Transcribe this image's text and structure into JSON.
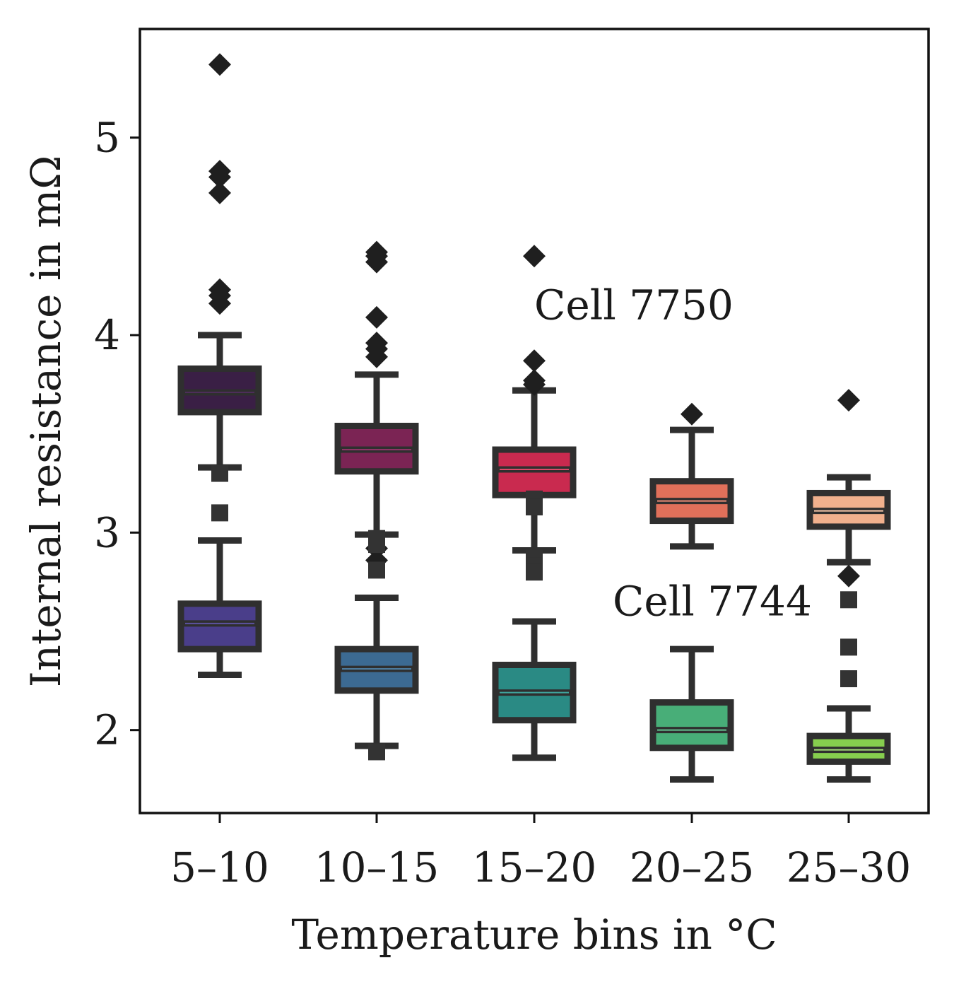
{
  "chart_data": {
    "type": "box",
    "title": "",
    "xlabel": "Temperature bins in °C",
    "ylabel": "Internal resistance in mΩ",
    "ylim": [
      1.58,
      5.55
    ],
    "yticks": [
      2,
      3,
      4,
      5
    ],
    "ytick_labels": [
      "2",
      "3",
      "4",
      "5"
    ],
    "grid": false,
    "categories": [
      "5–10",
      "10–15",
      "15–20",
      "20–25",
      "25–30"
    ],
    "series": [
      {
        "name": "Cell 7750",
        "annotation_at": {
          "category": "15–20",
          "y": 4.08
        },
        "outlier_marker": "diamond",
        "outlier_color": "#1f1f1f",
        "boxes": [
          {
            "category": "5–10",
            "whisker_low": 3.33,
            "q1": 3.61,
            "median": 3.71,
            "q3": 3.83,
            "whisker_high": 4.0,
            "fill": "#3a1f45",
            "inner_line": "#4d2d5a",
            "outliers": [
              5.37,
              4.83,
              4.8,
              4.72,
              4.23,
              4.2,
              4.16
            ]
          },
          {
            "category": "10–15",
            "whisker_low": 2.99,
            "q1": 3.31,
            "median": 3.42,
            "q3": 3.54,
            "whisker_high": 3.8,
            "fill": "#7b2454",
            "inner_line": "#8f3366",
            "outliers": [
              4.42,
              4.4,
              4.37,
              4.09,
              3.96,
              3.93,
              3.89,
              2.92,
              2.86
            ]
          },
          {
            "category": "15–20",
            "whisker_low": 2.91,
            "q1": 3.19,
            "median": 3.32,
            "q3": 3.42,
            "whisker_high": 3.72,
            "fill": "#c92a4f",
            "inner_line": "#d94a68",
            "outliers": [
              4.4,
              3.87,
              3.77,
              3.75
            ]
          },
          {
            "category": "20–25",
            "whisker_low": 2.93,
            "q1": 3.06,
            "median": 3.16,
            "q3": 3.26,
            "whisker_high": 3.52,
            "fill": "#e0705a",
            "inner_line": "#ea8c76",
            "outliers": [
              3.6
            ]
          },
          {
            "category": "25–30",
            "whisker_low": 2.85,
            "q1": 3.03,
            "median": 3.11,
            "q3": 3.2,
            "whisker_high": 3.28,
            "fill": "#f0b08d",
            "inner_line": "#f5c6a9",
            "outliers": [
              3.67,
              2.78
            ]
          }
        ]
      },
      {
        "name": "Cell 7744",
        "annotation_at": {
          "category": "20–25",
          "y": 2.58
        },
        "outlier_marker": "square",
        "outlier_color": "#333333",
        "boxes": [
          {
            "category": "5–10",
            "whisker_low": 2.28,
            "q1": 2.41,
            "median": 2.54,
            "q3": 2.64,
            "whisker_high": 2.96,
            "fill": "#4a3e8a",
            "inner_line": "#5d52a0",
            "outliers": [
              3.3,
              3.1
            ]
          },
          {
            "category": "10–15",
            "whisker_low": 1.92,
            "q1": 2.2,
            "median": 2.31,
            "q3": 2.41,
            "whisker_high": 2.67,
            "fill": "#3c6a92",
            "inner_line": "#5083aa",
            "outliers": [
              2.97,
              2.94,
              2.81,
              1.89
            ]
          },
          {
            "category": "15–20",
            "whisker_low": 1.86,
            "q1": 2.05,
            "median": 2.19,
            "q3": 2.33,
            "whisker_high": 2.55,
            "fill": "#2a8a84",
            "inner_line": "#3fa39c",
            "outliers": [
              3.17,
              3.13,
              2.87,
              2.83,
              2.8
            ]
          },
          {
            "category": "20–25",
            "whisker_low": 1.75,
            "q1": 1.91,
            "median": 2.0,
            "q3": 2.14,
            "whisker_high": 2.41,
            "fill": "#48ae78",
            "inner_line": "#64c290",
            "outliers": []
          },
          {
            "category": "25–30",
            "whisker_low": 1.75,
            "q1": 1.84,
            "median": 1.9,
            "q3": 1.97,
            "whisker_high": 2.11,
            "fill": "#86ce4e",
            "inner_line": "#a6e07a",
            "outliers": [
              2.66,
              2.42,
              2.26
            ]
          }
        ]
      }
    ]
  }
}
